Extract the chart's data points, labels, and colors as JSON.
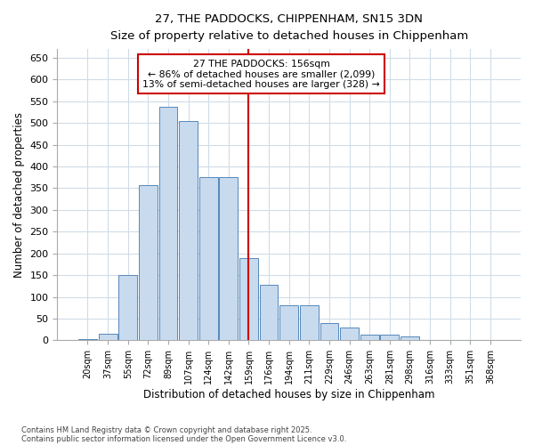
{
  "title1": "27, THE PADDOCKS, CHIPPENHAM, SN15 3DN",
  "title2": "Size of property relative to detached houses in Chippenham",
  "xlabel": "Distribution of detached houses by size in Chippenham",
  "ylabel": "Number of detached properties",
  "categories": [
    "20sqm",
    "37sqm",
    "55sqm",
    "72sqm",
    "89sqm",
    "107sqm",
    "124sqm",
    "142sqm",
    "159sqm",
    "176sqm",
    "194sqm",
    "211sqm",
    "229sqm",
    "246sqm",
    "263sqm",
    "281sqm",
    "298sqm",
    "316sqm",
    "333sqm",
    "351sqm",
    "368sqm"
  ],
  "values": [
    3,
    15,
    150,
    357,
    537,
    505,
    375,
    375,
    190,
    128,
    80,
    80,
    40,
    30,
    13,
    13,
    8,
    0,
    0,
    0,
    0
  ],
  "bar_color": "#c8daed",
  "bar_edge_color": "#5588bb",
  "vline_x": 8,
  "vline_color": "#cc0000",
  "annotation_title": "27 THE PADDOCKS: 156sqm",
  "annotation_line1": "← 86% of detached houses are smaller (2,099)",
  "annotation_line2": "13% of semi-detached houses are larger (328) →",
  "annotation_box_edgecolor": "#cc0000",
  "ylim": [
    0,
    670
  ],
  "yticks": [
    0,
    50,
    100,
    150,
    200,
    250,
    300,
    350,
    400,
    450,
    500,
    550,
    600,
    650
  ],
  "bg_color": "#ffffff",
  "plot_bg_color": "#ffffff",
  "grid_color": "#d0dce8",
  "footer1": "Contains HM Land Registry data © Crown copyright and database right 2025.",
  "footer2": "Contains public sector information licensed under the Open Government Licence v3.0."
}
